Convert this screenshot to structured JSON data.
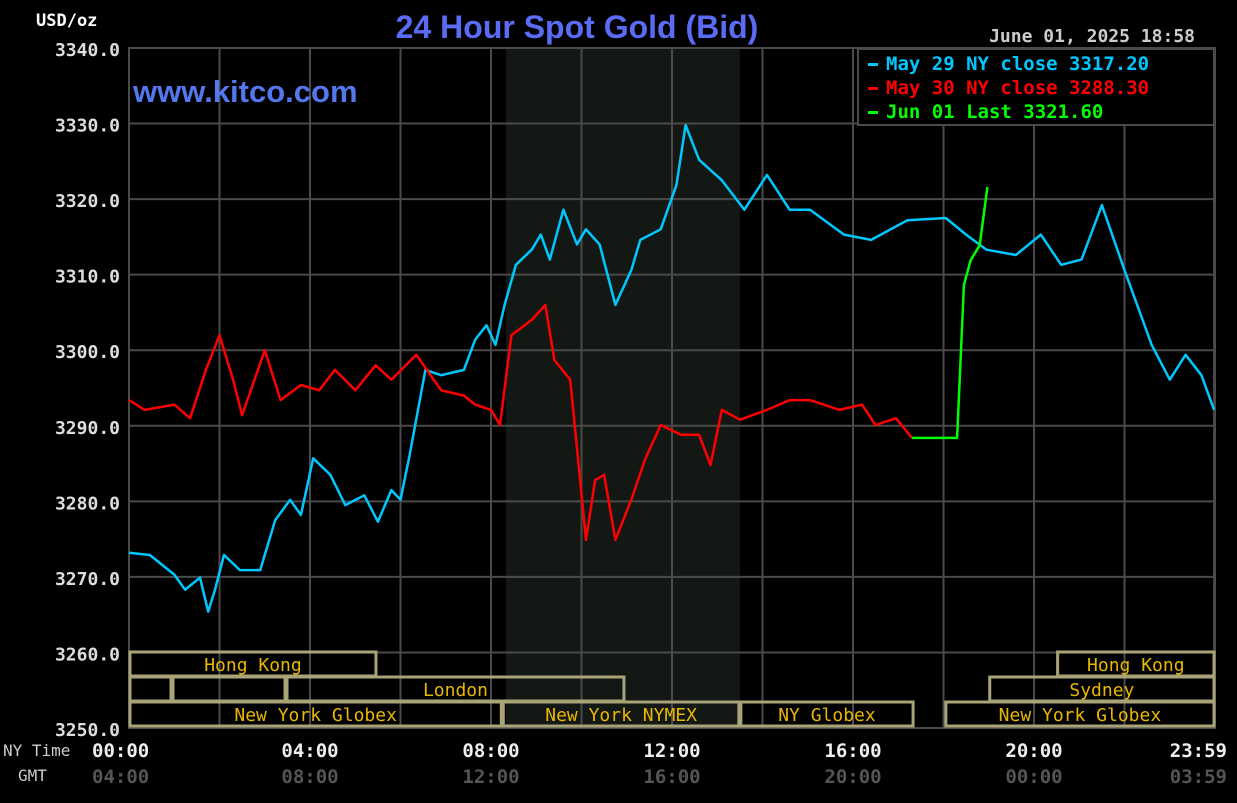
{
  "chart_data": {
    "type": "line",
    "title": "24 Hour Spot Gold (Bid)",
    "ylabel": "USD/oz",
    "watermark": "www.kitco.com",
    "timestamp": "June 01, 2025 18:58",
    "ylim": [
      3250,
      3340
    ],
    "yticks": [
      "3340.0",
      "3330.0",
      "3320.0",
      "3310.0",
      "3300.0",
      "3290.0",
      "3280.0",
      "3270.0",
      "3260.0",
      "3250.0"
    ],
    "xaxis_label_ny": "NY Time",
    "xaxis_label_gmt": "GMT",
    "xticks_ny": [
      "00:00",
      "04:00",
      "08:00",
      "12:00",
      "16:00",
      "20:00",
      "23:59"
    ],
    "xticks_gmt": [
      "04:00",
      "08:00",
      "12:00",
      "16:00",
      "20:00",
      "00:00",
      "03:59"
    ],
    "xlim_hours": [
      0,
      24
    ],
    "grid": true,
    "legend_position": "top-right",
    "highlight_hours": [
      8.33,
      13.5
    ],
    "series": [
      {
        "name": "May 29 NY close 3317.20",
        "color": "#00c8ff",
        "x": [
          0,
          0.46,
          1.0,
          1.24,
          1.57,
          1.75,
          1.9,
          2.1,
          2.45,
          2.9,
          3.23,
          3.56,
          3.8,
          4.07,
          4.45,
          4.78,
          5.2,
          5.5,
          5.8,
          6.0,
          6.2,
          6.55,
          6.9,
          7.4,
          7.65,
          7.9,
          8.1,
          8.3,
          8.55,
          8.9,
          9.1,
          9.3,
          9.6,
          9.9,
          10.1,
          10.4,
          10.75,
          11.1,
          11.3,
          11.75,
          12.1,
          12.3,
          12.6,
          13.1,
          13.6,
          14.1,
          14.6,
          15.05,
          15.8,
          16.4,
          17.2,
          18.05,
          18.5,
          18.95,
          19.6,
          20.15,
          20.6,
          21.05,
          21.5,
          22.0,
          22.6,
          23.0,
          23.35,
          23.7,
          23.98
        ],
        "y": [
          3273.2,
          3272.9,
          3270.3,
          3268.3,
          3269.9,
          3265.4,
          3268.3,
          3272.9,
          3270.9,
          3270.9,
          3277.5,
          3280.2,
          3278.2,
          3285.7,
          3283.5,
          3279.5,
          3280.8,
          3277.3,
          3281.5,
          3280.2,
          3286.1,
          3297.4,
          3296.7,
          3297.4,
          3301.4,
          3303.3,
          3300.7,
          3306.0,
          3311.3,
          3313.3,
          3315.3,
          3312.0,
          3318.6,
          3314.0,
          3316.0,
          3314.0,
          3306.0,
          3310.6,
          3314.6,
          3316.0,
          3321.9,
          3329.8,
          3325.2,
          3322.5,
          3318.6,
          3323.2,
          3318.6,
          3318.6,
          3315.3,
          3314.6,
          3317.2,
          3317.5,
          3315.3,
          3313.3,
          3312.6,
          3315.3,
          3311.3,
          3312.0,
          3319.2,
          3310.6,
          3300.7,
          3296.1,
          3299.4,
          3296.7,
          3292.1
        ]
      },
      {
        "name": "May 30 NY close 3288.30",
        "color": "#ff0000",
        "x": [
          0,
          0.35,
          1.0,
          1.35,
          1.7,
          2.0,
          2.3,
          2.5,
          3.0,
          3.35,
          3.8,
          4.2,
          4.55,
          5.0,
          5.45,
          5.8,
          6.35,
          6.9,
          7.4,
          7.65,
          8.0,
          8.2,
          8.45,
          8.9,
          9.2,
          9.4,
          9.75,
          10.1,
          10.3,
          10.5,
          10.75,
          11.1,
          11.4,
          11.75,
          12.2,
          12.6,
          12.85,
          13.1,
          13.5,
          14.1,
          14.6,
          15.05,
          15.7,
          16.2,
          16.5,
          16.95,
          17.3
        ],
        "y": [
          3293.4,
          3292.1,
          3292.8,
          3291.0,
          3297.4,
          3302.0,
          3296.1,
          3291.4,
          3300.0,
          3293.4,
          3295.4,
          3294.7,
          3297.4,
          3294.7,
          3298.0,
          3296.1,
          3299.4,
          3294.7,
          3294.0,
          3292.8,
          3292.1,
          3290.1,
          3302.0,
          3304.0,
          3306.0,
          3298.7,
          3296.1,
          3274.9,
          3282.8,
          3283.5,
          3274.9,
          3280.2,
          3285.5,
          3290.1,
          3288.8,
          3288.8,
          3284.8,
          3292.1,
          3290.8,
          3292.1,
          3293.4,
          3293.4,
          3292.1,
          3292.8,
          3290.1,
          3291.0,
          3288.4
        ]
      },
      {
        "name": "Jun 01 Last 3321.60",
        "color": "#00ff00",
        "x": [
          17.3,
          18.3,
          18.45,
          18.6,
          18.8,
          18.97
        ],
        "y": [
          3288.4,
          3288.4,
          3308.6,
          3311.9,
          3313.9,
          3321.6
        ]
      }
    ],
    "sessions": [
      {
        "row": 0,
        "label": "Hong Kong",
        "start": 0,
        "end": 5.48
      },
      {
        "row": 0,
        "label": "Hong Kong",
        "start": 20.5,
        "end": 24
      },
      {
        "row": 1,
        "label": "",
        "start": 0,
        "end": 0.95
      },
      {
        "row": 1,
        "label": "",
        "start": 0.95,
        "end": 3.47
      },
      {
        "row": 1,
        "label": "London",
        "start": 3.47,
        "end": 10.96
      },
      {
        "row": 1,
        "label": "Sydney",
        "start": 19.0,
        "end": 24
      },
      {
        "row": 2,
        "label": "New York Globex",
        "start": 0,
        "end": 8.25
      },
      {
        "row": 2,
        "label": "New York NYMEX",
        "start": 8.25,
        "end": 13.5
      },
      {
        "row": 2,
        "label": "NY Globex",
        "start": 13.5,
        "end": 17.35
      },
      {
        "row": 2,
        "label": "New York Globex",
        "start": 18.03,
        "end": 24
      }
    ],
    "colors": {
      "background": "#000000",
      "grid": "#4a4a4a",
      "title": "#5a6cf5",
      "session_text": "#e8b800",
      "session_border": "#a8a478",
      "highlight": "#141814"
    }
  }
}
